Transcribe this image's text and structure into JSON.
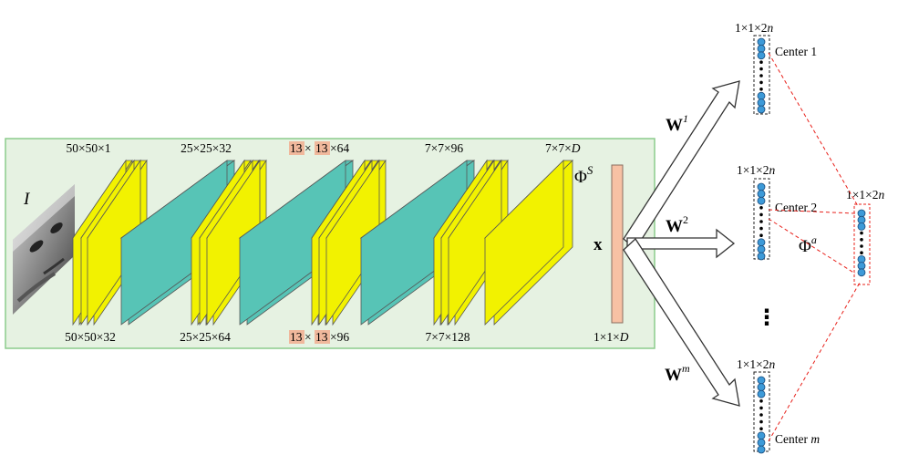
{
  "input": {
    "symbol": "I"
  },
  "top_dims": [
    {
      "text": "50×50×1",
      "hl": false
    },
    {
      "text": "25×25×32",
      "hl": false
    },
    {
      "a": "13",
      "b": "13",
      "c": "×64",
      "hl": true
    },
    {
      "text": "7×7×96",
      "hl": false
    },
    {
      "prefix": "7×7×",
      "var": "D",
      "hl": false
    }
  ],
  "bottom_dims": [
    {
      "text": "50×50×32",
      "hl": false
    },
    {
      "text": "25×25×64",
      "hl": false
    },
    {
      "a": "13",
      "b": "13",
      "c": "×96",
      "hl": true
    },
    {
      "text": "7×7×128",
      "hl": false
    }
  ],
  "feature": {
    "label": "x",
    "phi": "Φ",
    "phi_sup": "S",
    "dim_prefix": "1×1×",
    "dim_var": "D"
  },
  "arrows": [
    {
      "w": "W",
      "sup": "1"
    },
    {
      "w": "W",
      "sup": "2"
    },
    {
      "w": "W",
      "sup": "m"
    }
  ],
  "centers": [
    {
      "dim_prefix": "1×1×2",
      "dim_var": "n",
      "label": "Center 1",
      "label_var": ""
    },
    {
      "dim_prefix": "1×1×2",
      "dim_var": "n",
      "label": "Center 2",
      "label_var": ""
    },
    {
      "dim_prefix": "1×1×2",
      "dim_var": "n",
      "label": "Center ",
      "label_var": "m"
    }
  ],
  "ellipsis": "⋮",
  "phi_a": {
    "phi": "Φ",
    "sup": "a",
    "dim_prefix": "1×1×2",
    "dim_var": "n"
  },
  "colors": {
    "panel_fill": "#e6f2e2",
    "panel_stroke": "#8ccc8c",
    "conv_yellow": "#f2f200",
    "pool_teal": "#57c4b6",
    "feature_vec": "#f7c1a4",
    "highlight": "#f0b89c",
    "node_blue": "#3d9ad8",
    "dashed_red": "#e8201a"
  }
}
